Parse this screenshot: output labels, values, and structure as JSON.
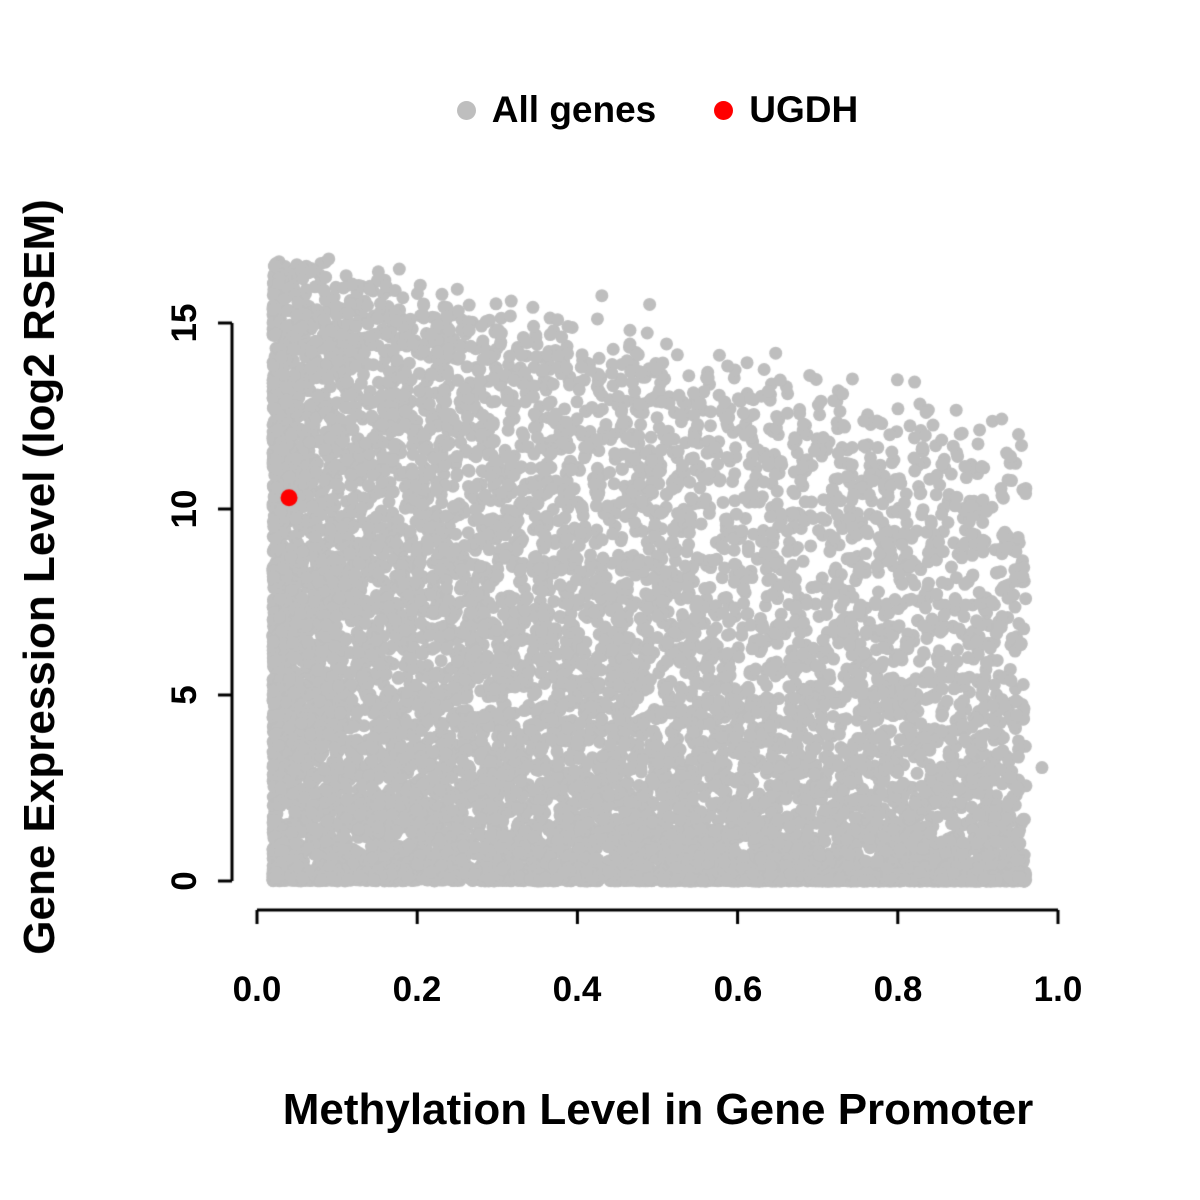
{
  "chart_data": {
    "type": "scatter",
    "title": "",
    "xlabel": "Methylation Level in Gene Promoter",
    "ylabel": "Gene Expression Level (log2 RSEM)",
    "xlim": [
      0,
      1.0
    ],
    "ylim": [
      0,
      17
    ],
    "x_ticks": [
      0.0,
      0.2,
      0.4,
      0.6,
      0.8,
      1.0
    ],
    "x_tick_labels": [
      "0.0",
      "0.2",
      "0.4",
      "0.6",
      "0.8",
      "1.0"
    ],
    "y_ticks": [
      0,
      5,
      10,
      15
    ],
    "y_tick_labels": [
      "0",
      "5",
      "10",
      "15"
    ],
    "grid": false,
    "legend_position": "top-center",
    "axis_color": "#000000",
    "series": [
      {
        "name": "All genes",
        "color": "#BEBEBE",
        "marker": "filled-circle",
        "n_points": 10000,
        "x_range": [
          0.02,
          0.96
        ],
        "y_range": [
          0,
          16.8
        ],
        "trend": "very dense cloud; upper envelope of expression decreases as promoter methylation increases (from ~16.6 at x=0 to ~11.5 at x=0.95); dense baseline at y=0 across all x",
        "upper_envelope": {
          "y_at_x0": 16.6,
          "y_at_x1": 11.5
        },
        "outlier_points": [
          [
            0.98,
            3.05
          ]
        ],
        "generation": {
          "seed": 7,
          "n": 10000,
          "x_min": 0.02,
          "x_max": 0.96,
          "x_uniform_fraction": 0.5,
          "x_skew_power": 1.9,
          "envelope_intercept": 16.6,
          "envelope_slope": -5.2,
          "envelope_noise_sd": 0.55,
          "y_skew_base": 1.0,
          "y_skew_per_x": 1.6,
          "baseline_fraction": 0.08,
          "y_max": 16.8,
          "point_radius_px": 6.5
        }
      },
      {
        "name": "UGDH",
        "color": "#FF0000",
        "marker": "filled-circle",
        "points": [
          [
            0.04,
            10.3
          ]
        ],
        "point_radius_px": 8.5
      }
    ]
  }
}
